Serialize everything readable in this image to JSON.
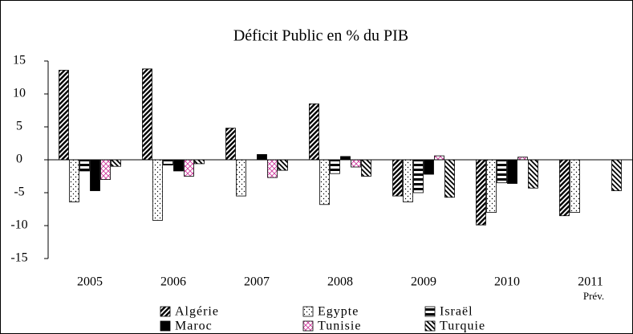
{
  "chart_data": {
    "type": "bar",
    "title": "Déficit Public en % du PIB",
    "categories": [
      "2005",
      "2006",
      "2007",
      "2008",
      "2009",
      "2010",
      "2011"
    ],
    "category_note": "Prév.",
    "series": [
      {
        "name": "Algérie",
        "color": "#000000",
        "pattern": "diagonal",
        "values": [
          13.6,
          13.8,
          4.8,
          8.5,
          -5.5,
          -9.9,
          -8.5
        ]
      },
      {
        "name": "Egypte",
        "color": "#000000",
        "pattern": "dots",
        "values": [
          -6.4,
          -9.2,
          -5.5,
          -6.8,
          -6.4,
          -8.0,
          -8.0
        ]
      },
      {
        "name": "Israël",
        "color": "#000000",
        "pattern": "horizontal",
        "values": [
          -1.7,
          -0.8,
          0,
          -2.1,
          -5.0,
          -3.5,
          null
        ]
      },
      {
        "name": "Maroc",
        "color": "#000000",
        "pattern": "solid",
        "values": [
          -4.7,
          -1.7,
          0.8,
          0.5,
          -2.2,
          -3.6,
          null
        ]
      },
      {
        "name": "Tunisie",
        "color": "#cc3399",
        "pattern": "crosshatch",
        "values": [
          -3.0,
          -2.5,
          -2.7,
          -1.1,
          0.6,
          0.4,
          null
        ]
      },
      {
        "name": "Turquie",
        "color": "#000000",
        "pattern": "diagonal-reverse",
        "values": [
          -1.0,
          -0.6,
          -1.6,
          -2.5,
          -5.7,
          -4.3,
          -4.7
        ]
      }
    ],
    "ylim": [
      -15,
      15
    ],
    "yticks": [
      15,
      10,
      5,
      0,
      -5,
      -10,
      -15
    ],
    "grid": false,
    "legend": "bottom"
  }
}
